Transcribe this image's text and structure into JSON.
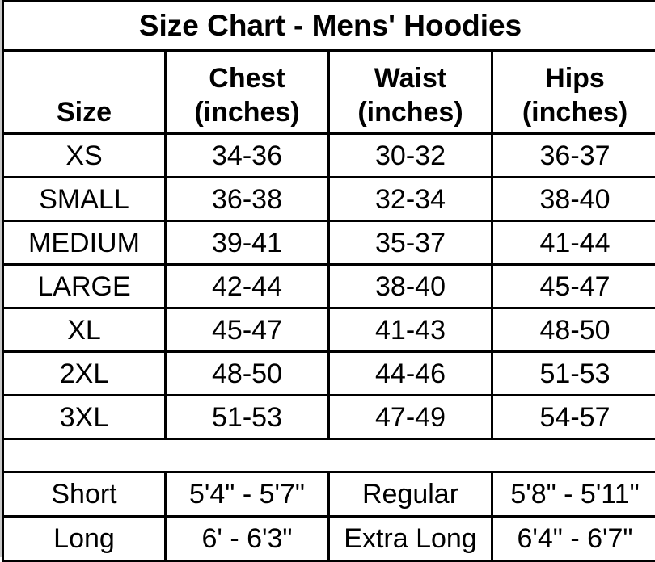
{
  "title": "Size Chart - Mens' Hoodies",
  "headers": {
    "size": "Size",
    "chest": [
      "Chest",
      "(inches)"
    ],
    "waist": [
      "Waist",
      "(inches)"
    ],
    "hips": [
      "Hips",
      "(inches)"
    ]
  },
  "rows": [
    {
      "size": "XS",
      "chest": "34-36",
      "waist": "30-32",
      "hips": "36-37"
    },
    {
      "size": "SMALL",
      "chest": "36-38",
      "waist": "32-34",
      "hips": "38-40"
    },
    {
      "size": "MEDIUM",
      "chest": "39-41",
      "waist": "35-37",
      "hips": "41-44"
    },
    {
      "size": "LARGE",
      "chest": "42-44",
      "waist": "38-40",
      "hips": "45-47"
    },
    {
      "size": "XL",
      "chest": "45-47",
      "waist": "41-43",
      "hips": "48-50"
    },
    {
      "size": "2XL",
      "chest": "48-50",
      "waist": "44-46",
      "hips": "51-53"
    },
    {
      "size": "3XL",
      "chest": "51-53",
      "waist": "47-49",
      "hips": "54-57"
    }
  ],
  "heights": [
    {
      "label1": "Short",
      "value1": "5'4\" - 5'7\"",
      "label2": "Regular",
      "value2": "5'8\" - 5'11\""
    },
    {
      "label1": "Long",
      "value1": "6' - 6'3\"",
      "label2": "Extra Long",
      "value2": "6'4\" - 6'7\""
    }
  ]
}
